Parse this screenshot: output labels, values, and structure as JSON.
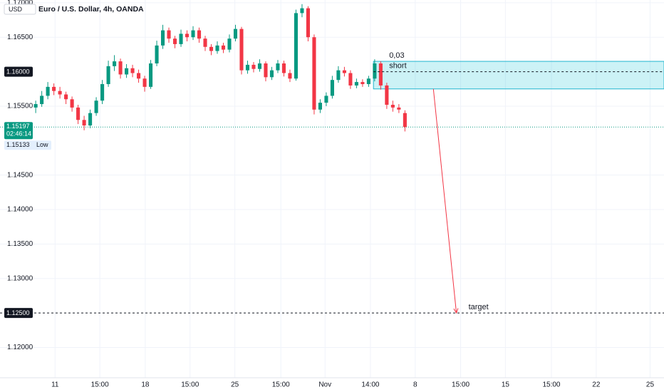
{
  "chart_data": {
    "type": "candlestick",
    "title": "Euro / U.S. Dollar, 4h, OANDA",
    "currency_label": "USD",
    "up_color": "#089981",
    "down_color": "#f23645",
    "grid": true,
    "x": [
      0,
      1,
      2,
      3,
      4,
      5,
      6,
      7,
      8,
      9,
      10,
      11,
      12,
      13,
      14,
      15,
      16,
      17,
      18,
      19,
      20,
      21,
      22,
      23,
      24,
      25,
      26,
      27,
      28,
      29,
      30,
      31,
      32,
      33,
      34,
      35,
      36,
      37,
      38,
      39,
      40,
      41,
      42,
      43,
      44,
      45,
      46,
      47,
      48,
      49,
      50,
      51,
      52,
      53,
      54,
      55,
      56,
      57,
      58,
      59,
      60,
      61
    ],
    "open": [
      1.1548,
      1.1553,
      1.1565,
      1.1578,
      1.1572,
      1.1567,
      1.156,
      1.1548,
      1.153,
      1.1522,
      1.154,
      1.1558,
      1.1582,
      1.1608,
      1.1615,
      1.1596,
      1.1605,
      1.1598,
      1.159,
      1.1578,
      1.1612,
      1.1638,
      1.166,
      1.1648,
      1.164,
      1.1655,
      1.165,
      1.166,
      1.1648,
      1.1636,
      1.163,
      1.1638,
      1.1632,
      1.1648,
      1.1662,
      1.1602,
      1.161,
      1.1604,
      1.1612,
      1.1592,
      1.1602,
      1.1612,
      1.1598,
      1.159,
      1.1685,
      1.1692,
      1.165,
      1.1545,
      1.1555,
      1.1565,
      1.1588,
      1.1602,
      1.1598,
      1.158,
      1.1585,
      1.1582,
      1.159,
      1.1612,
      1.158,
      1.1552,
      1.1548,
      1.154
    ],
    "high": [
      1.1558,
      1.1572,
      1.1585,
      1.1583,
      1.1578,
      1.1571,
      1.1564,
      1.1552,
      1.1536,
      1.1545,
      1.1563,
      1.1588,
      1.1616,
      1.1624,
      1.1619,
      1.1611,
      1.161,
      1.1603,
      1.1594,
      1.1617,
      1.1645,
      1.1668,
      1.1664,
      1.1652,
      1.1661,
      1.166,
      1.1666,
      1.1664,
      1.1652,
      1.164,
      1.1644,
      1.1642,
      1.1654,
      1.1668,
      1.1665,
      1.1616,
      1.1614,
      1.1618,
      1.1615,
      1.1607,
      1.1617,
      1.1616,
      1.1603,
      1.169,
      1.1698,
      1.1695,
      1.1654,
      1.156,
      1.157,
      1.1594,
      1.1608,
      1.1607,
      1.1602,
      1.159,
      1.1589,
      1.1594,
      1.1618,
      1.1615,
      1.1584,
      1.1558,
      1.1553,
      1.1544
    ],
    "low": [
      1.154,
      1.1549,
      1.156,
      1.1566,
      1.1561,
      1.1553,
      1.1542,
      1.1524,
      1.1515,
      1.1518,
      1.1536,
      1.1553,
      1.1578,
      1.1601,
      1.159,
      1.1591,
      1.1592,
      1.1584,
      1.1571,
      1.1575,
      1.1608,
      1.1633,
      1.1642,
      1.1634,
      1.1636,
      1.1644,
      1.1646,
      1.1642,
      1.163,
      1.1624,
      1.1626,
      1.1627,
      1.1628,
      1.1644,
      1.1596,
      1.1597,
      1.1599,
      1.16,
      1.1586,
      1.1588,
      1.1598,
      1.1593,
      1.1585,
      1.1587,
      1.1679,
      1.1644,
      1.1538,
      1.154,
      1.155,
      1.1561,
      1.1584,
      1.1593,
      1.1575,
      1.1576,
      1.1578,
      1.1578,
      1.1586,
      1.1574,
      1.1546,
      1.1542,
      1.154,
      1.15133
    ],
    "close": [
      1.1553,
      1.1565,
      1.1578,
      1.1572,
      1.1567,
      1.156,
      1.1548,
      1.153,
      1.1522,
      1.154,
      1.1558,
      1.1582,
      1.1608,
      1.1615,
      1.1596,
      1.1605,
      1.1598,
      1.159,
      1.1578,
      1.1612,
      1.1638,
      1.166,
      1.1648,
      1.164,
      1.1655,
      1.165,
      1.166,
      1.1648,
      1.1636,
      1.163,
      1.1638,
      1.1632,
      1.1648,
      1.1662,
      1.1602,
      1.161,
      1.1604,
      1.1612,
      1.1592,
      1.1602,
      1.1612,
      1.1598,
      1.159,
      1.1685,
      1.1692,
      1.165,
      1.1545,
      1.1555,
      1.1565,
      1.1588,
      1.1602,
      1.1598,
      1.158,
      1.1585,
      1.1582,
      1.159,
      1.1612,
      1.158,
      1.1552,
      1.1548,
      1.1545,
      1.15197
    ],
    "xlim": [
      -5.9,
      103.8
    ],
    "ylim": [
      1.1156,
      1.1704
    ],
    "xticks": [
      {
        "value": 3.2,
        "label": "11"
      },
      {
        "value": 10.6,
        "label": "15:00"
      },
      {
        "value": 18.1,
        "label": "18"
      },
      {
        "value": 25.5,
        "label": "15:00"
      },
      {
        "value": 32.9,
        "label": "25"
      },
      {
        "value": 40.5,
        "label": "15:00"
      },
      {
        "value": 47.8,
        "label": "Nov"
      },
      {
        "value": 55.3,
        "label": "14:00"
      },
      {
        "value": 62.7,
        "label": "8"
      },
      {
        "value": 70.2,
        "label": "15:00"
      },
      {
        "value": 77.6,
        "label": "15"
      },
      {
        "value": 85.2,
        "label": "15:00"
      },
      {
        "value": 92.6,
        "label": "22"
      },
      {
        "value": 101.5,
        "label": "25"
      }
    ],
    "yticks": [
      {
        "value": 1.17,
        "label": "1.17000"
      },
      {
        "value": 1.165,
        "label": "1.16500"
      },
      {
        "value": 1.155,
        "label": "1.15500"
      },
      {
        "value": 1.145,
        "label": "1.14500"
      },
      {
        "value": 1.14,
        "label": "1.14000"
      },
      {
        "value": 1.135,
        "label": "1.13500"
      },
      {
        "value": 1.13,
        "label": "1.13000"
      },
      {
        "value": 1.12,
        "label": "1.12000"
      }
    ],
    "annotations": {
      "zone": {
        "top": 1.1615,
        "bottom": 1.1575,
        "x_from": 55.8,
        "size_label": "0,03",
        "label": "short"
      },
      "short_level": {
        "value": 1.16,
        "label": "1.16000"
      },
      "target_level": {
        "value": 1.125,
        "label": "1.12500",
        "text": "target"
      },
      "arrow": {
        "x_from": 65.7,
        "y_from": 1.1575,
        "x_to": 69.5,
        "y_to": 1.125
      },
      "last_price": {
        "value": 1.15197,
        "label": "1.15197",
        "countdown": "02:46:14"
      },
      "low_price": {
        "value": 1.15133,
        "label": "1.15133",
        "text": "Low"
      }
    }
  }
}
